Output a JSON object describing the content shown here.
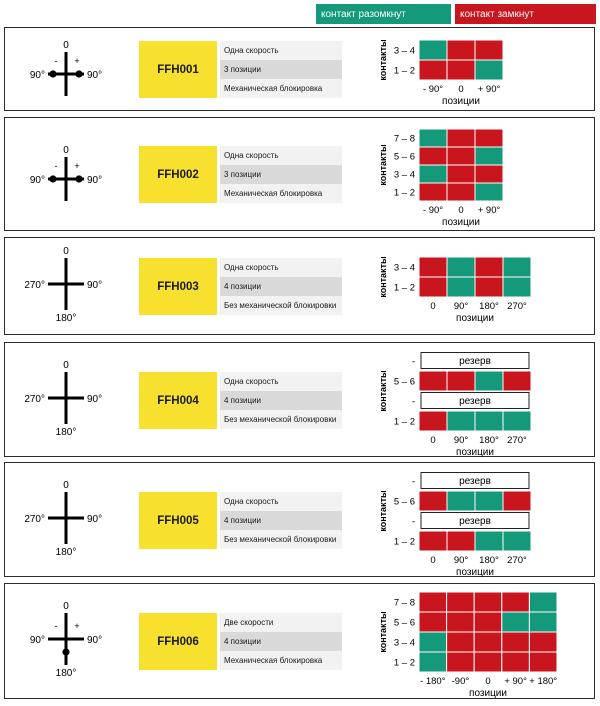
{
  "legend": {
    "open": {
      "label": "контакт разомкнут",
      "color": "#149a7a"
    },
    "closed": {
      "label": "контакт замкнут",
      "color": "#c8151e"
    }
  },
  "axis": {
    "contacts_label": "контакты",
    "positions_label": "позиции",
    "reserve_label": "резерв"
  },
  "switches": [
    {
      "code": "FFH001",
      "features": [
        "Одна скорость",
        "3 позиции",
        "Механическая блокировка"
      ],
      "dial": {
        "top": "0",
        "left": "90°",
        "right": "90°",
        "bottom": "",
        "minus": "-",
        "plus": "+",
        "dots": [
          "left",
          "right"
        ]
      },
      "positions": [
        "- 90°",
        "0",
        "+ 90°"
      ],
      "rows": [
        {
          "label": "3 – 4",
          "cells": [
            "o",
            "c",
            "c"
          ]
        },
        {
          "label": "1 – 2",
          "cells": [
            "c",
            "c",
            "o"
          ]
        }
      ]
    },
    {
      "code": "FFH002",
      "features": [
        "Одна скорость",
        "3 позиции",
        "Механическая блокировка"
      ],
      "dial": {
        "top": "0",
        "left": "90°",
        "right": "90°",
        "bottom": "",
        "minus": "-",
        "plus": "+",
        "dots": [
          "left",
          "right"
        ]
      },
      "positions": [
        "- 90°",
        "0",
        "+ 90°"
      ],
      "rows": [
        {
          "label": "7 – 8",
          "cells": [
            "o",
            "c",
            "c"
          ]
        },
        {
          "label": "5 – 6",
          "cells": [
            "c",
            "c",
            "o"
          ]
        },
        {
          "label": "3 – 4",
          "cells": [
            "o",
            "c",
            "c"
          ]
        },
        {
          "label": "1 – 2",
          "cells": [
            "c",
            "c",
            "o"
          ]
        }
      ]
    },
    {
      "code": "FFH003",
      "features": [
        "Одна скорость",
        "4 позиции",
        "Без механической блокировки"
      ],
      "dial": {
        "top": "0",
        "left": "270°",
        "right": "90°",
        "bottom": "180°",
        "minus": "",
        "plus": "",
        "dots": []
      },
      "positions": [
        "0",
        "90°",
        "180°",
        "270°"
      ],
      "rows": [
        {
          "label": "3 – 4",
          "cells": [
            "c",
            "o",
            "c",
            "o"
          ]
        },
        {
          "label": "1 – 2",
          "cells": [
            "c",
            "o",
            "c",
            "o"
          ]
        }
      ]
    },
    {
      "code": "FFH004",
      "features": [
        "Одна скорость",
        "4 позиции",
        "Без механической блокировки"
      ],
      "dial": {
        "top": "0",
        "left": "270°",
        "right": "90°",
        "bottom": "180°",
        "minus": "",
        "plus": "",
        "dots": []
      },
      "positions": [
        "0",
        "90°",
        "180°",
        "270°"
      ],
      "rows": [
        {
          "label": "-",
          "reserve": true
        },
        {
          "label": "5 – 6",
          "cells": [
            "c",
            "c",
            "o",
            "c"
          ]
        },
        {
          "label": "-",
          "reserve": true
        },
        {
          "label": "1 – 2",
          "cells": [
            "c",
            "o",
            "o",
            "o"
          ]
        }
      ]
    },
    {
      "code": "FFH005",
      "features": [
        "Одна скорость",
        "4 позиции",
        "Без механической блокировки"
      ],
      "dial": {
        "top": "0",
        "left": "270°",
        "right": "90°",
        "bottom": "180°",
        "minus": "",
        "plus": "",
        "dots": []
      },
      "positions": [
        "0",
        "90°",
        "180°",
        "270°"
      ],
      "rows": [
        {
          "label": "-",
          "reserve": true
        },
        {
          "label": "5 – 6",
          "cells": [
            "c",
            "o",
            "o",
            "c"
          ]
        },
        {
          "label": "-",
          "reserve": true
        },
        {
          "label": "1 – 2",
          "cells": [
            "c",
            "c",
            "o",
            "o"
          ]
        }
      ]
    },
    {
      "code": "FFH006",
      "features": [
        "Две скорости",
        "4 позиции",
        "Механическая блокировка"
      ],
      "dial": {
        "top": "0",
        "left": "90°",
        "right": "90°",
        "bottom": "180°",
        "minus": "-",
        "plus": "+",
        "dots": [
          "bottom"
        ]
      },
      "positions": [
        "- 180°",
        "-90°",
        "0",
        "+ 90°",
        "+ 180°"
      ],
      "rows": [
        {
          "label": "7 – 8",
          "cells": [
            "c",
            "c",
            "c",
            "c",
            "o"
          ]
        },
        {
          "label": "5 – 6",
          "cells": [
            "c",
            "c",
            "c",
            "o",
            "o"
          ]
        },
        {
          "label": "3 – 4",
          "cells": [
            "o",
            "c",
            "c",
            "c",
            "c"
          ]
        },
        {
          "label": "1 – 2",
          "cells": [
            "o",
            "c",
            "c",
            "c",
            "c"
          ]
        }
      ]
    }
  ]
}
